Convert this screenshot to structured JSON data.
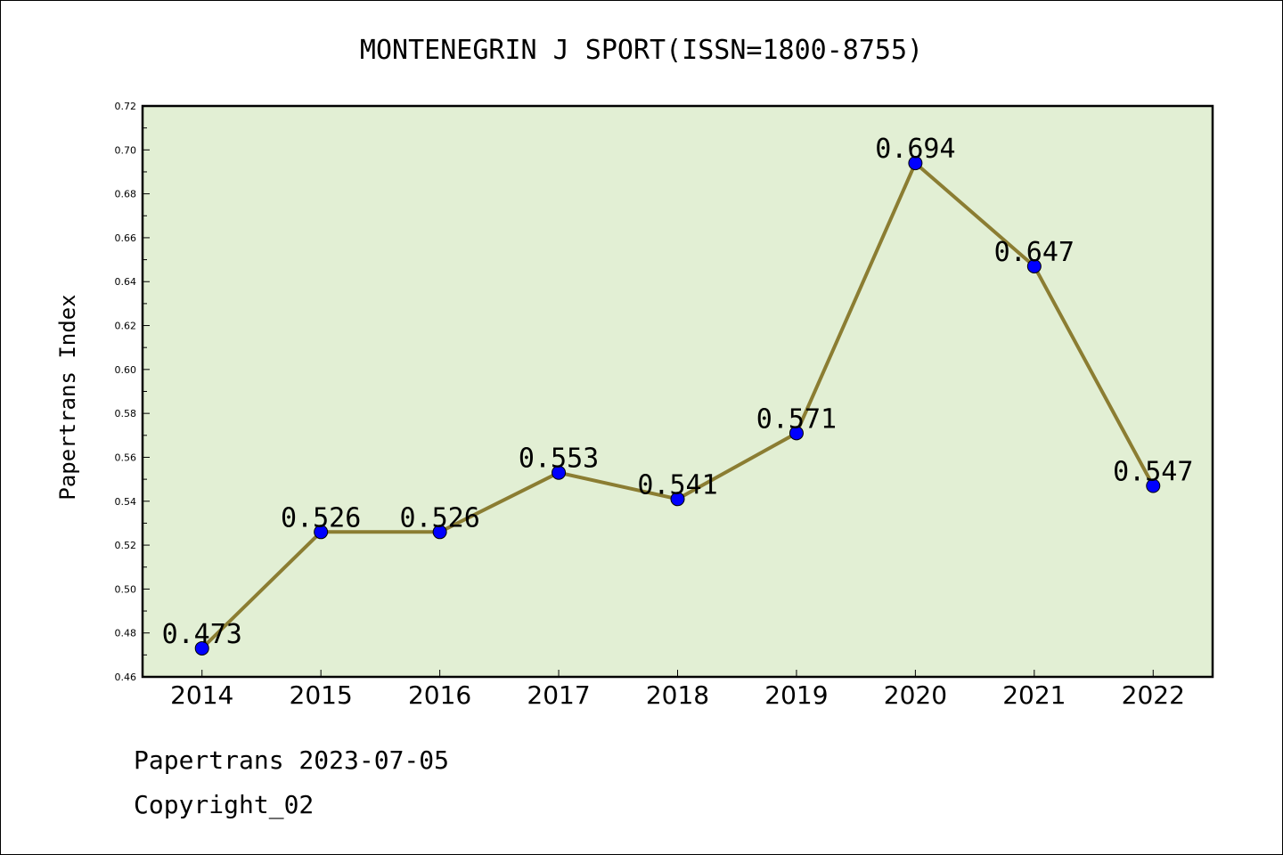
{
  "chart_data": {
    "type": "line",
    "title": "MONTENEGRIN J SPORT(ISSN=1800-8755)",
    "xlabel": "",
    "ylabel": "Papertrans Index",
    "categories": [
      "2014",
      "2015",
      "2016",
      "2017",
      "2018",
      "2019",
      "2020",
      "2021",
      "2022"
    ],
    "values": [
      0.473,
      0.526,
      0.526,
      0.553,
      0.541,
      0.571,
      0.694,
      0.647,
      0.547
    ],
    "data_labels": [
      "0.473",
      "0.526",
      "0.526",
      "0.553",
      "0.541",
      "0.571",
      "0.694",
      "0.647",
      "0.547"
    ],
    "ylim": [
      0.46,
      0.72
    ],
    "yticks": [
      "0.46",
      "0.48",
      "0.50",
      "0.52",
      "0.54",
      "0.56",
      "0.58",
      "0.60",
      "0.62",
      "0.64",
      "0.66",
      "0.68",
      "0.70",
      "0.72"
    ],
    "grid": false,
    "colors": {
      "line": "#8B7D32",
      "marker": "#0000FF",
      "plot_background": "#E2EFD4"
    }
  },
  "footer": {
    "line1": "Papertrans 2023-07-05",
    "line2": "Copyright_02"
  }
}
